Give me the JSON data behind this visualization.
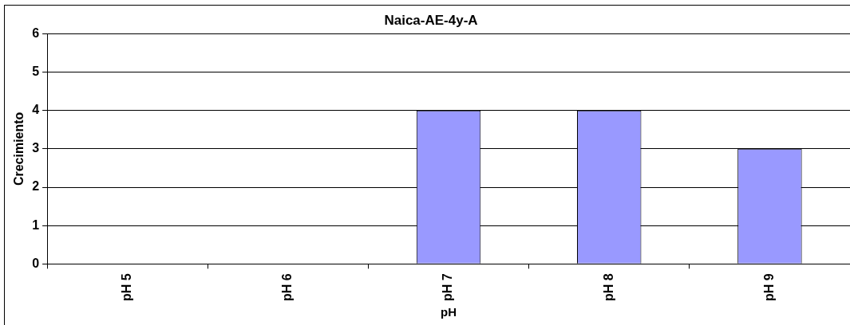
{
  "chart_data": {
    "type": "bar",
    "title": "Naica-AE-4y-A",
    "xlabel": "pH",
    "ylabel": "Crecimiento",
    "categories": [
      "pH 5",
      "pH 6",
      "pH 7",
      "pH 8",
      "pH 9"
    ],
    "values": [
      0,
      0,
      4,
      4,
      3
    ],
    "color": "#9999ff",
    "ylim": [
      0,
      6
    ],
    "yticks": [
      0,
      1,
      2,
      3,
      4,
      5,
      6
    ],
    "grid": "y"
  }
}
